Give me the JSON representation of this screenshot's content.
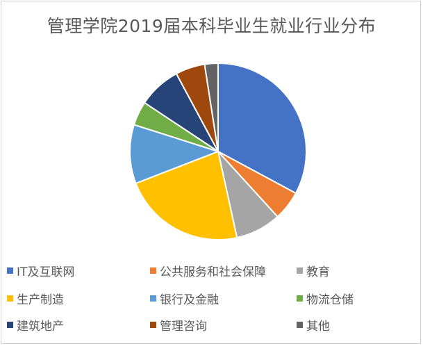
{
  "chart_data": {
    "type": "pie",
    "title": "管理学院2019届本科毕业生就业行业分布",
    "categories": [
      "IT及互联网",
      "公共服务和社会保障",
      "教育",
      "生产制造",
      "银行及金融",
      "物流仓储",
      "建筑地产",
      "管理咨询",
      "其他"
    ],
    "values": [
      33.5,
      5.5,
      8.5,
      23,
      11,
      4.5,
      8,
      5.5,
      2.5
    ],
    "colors": [
      "#4472C4",
      "#ED7D31",
      "#A5A5A5",
      "#FFC000",
      "#5B9BD5",
      "#70AD47",
      "#264478",
      "#9E480E",
      "#636363"
    ],
    "legend_position": "bottom"
  }
}
